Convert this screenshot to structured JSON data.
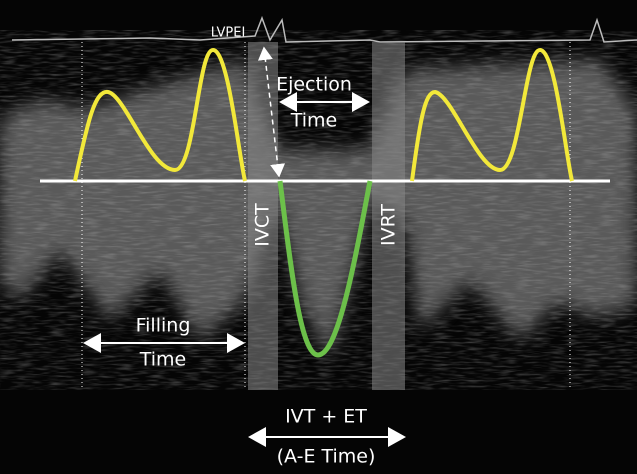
{
  "labels": {
    "lvpei": "LVPEI",
    "ejection_time": [
      "Ejection",
      "Time"
    ],
    "ivct": "IVCT",
    "ivrt": "IVRT",
    "filling_time": [
      "Filling",
      "Time"
    ],
    "ivt_et": [
      "IVT + ET",
      "(A-E Time)"
    ]
  }
}
